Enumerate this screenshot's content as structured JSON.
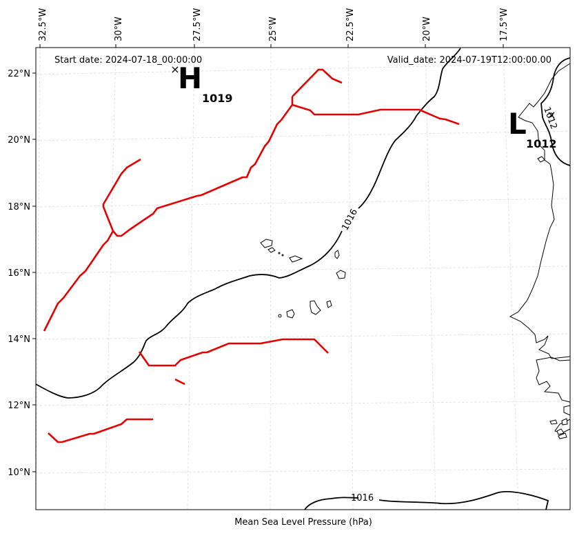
{
  "map": {
    "title": "Mean Sea Level Pressure (hPa)",
    "start_date": "Start date: 2024-07-18_00:00:00",
    "valid_date": "Valid_date: 2024-07-19T12:00:00.00",
    "lon_labels": [
      "32.5°W",
      "30°W",
      "27.5°W",
      "25°W",
      "22.5°W",
      "20°W",
      "17.5°W"
    ],
    "lat_labels": [
      "22°N",
      "20°N",
      "18°N",
      "16°N",
      "14°N",
      "12°N",
      "10°N"
    ],
    "pressure_centers": [
      {
        "type": "H",
        "value": "1019"
      },
      {
        "type": "L",
        "value": "1012"
      }
    ],
    "contour_labels": [
      "1016",
      "1016",
      "1012"
    ],
    "colors": {
      "front": "#e60000",
      "isobar": "#000000",
      "grid": "#d9d9d9"
    }
  }
}
